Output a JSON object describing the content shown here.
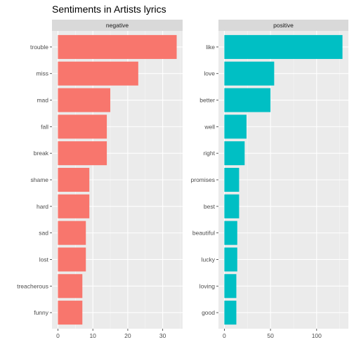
{
  "chart_data": {
    "type": "bar",
    "orientation": "horizontal",
    "title": "Sentiments in Artists lyrics",
    "xlabel": "",
    "ylabel": "",
    "grid": true,
    "legend": "none",
    "facets": [
      {
        "name": "negative",
        "color": "#F8766D",
        "categories": [
          "trouble",
          "miss",
          "mad",
          "fall",
          "break",
          "shame",
          "hard",
          "sad",
          "lost",
          "treacherous",
          "funny"
        ],
        "values": [
          34,
          23,
          15,
          14,
          14,
          9,
          9,
          8,
          8,
          7,
          7
        ],
        "xlim": [
          -1.7,
          35.7
        ],
        "xticks": [
          0,
          10,
          20,
          30
        ],
        "xtick_labels": [
          "0",
          "10",
          "20",
          "30"
        ]
      },
      {
        "name": "positive",
        "color": "#00BFC4",
        "categories": [
          "like",
          "love",
          "better",
          "well",
          "right",
          "promises",
          "best",
          "beautiful",
          "lucky",
          "loving",
          "good"
        ],
        "values": [
          128,
          54,
          50,
          24,
          22,
          16,
          16,
          14,
          14,
          13,
          13
        ],
        "xlim": [
          -6.4,
          134.4
        ],
        "xticks": [
          0,
          50,
          100
        ],
        "xtick_labels": [
          "0",
          "50",
          "100"
        ]
      }
    ]
  }
}
